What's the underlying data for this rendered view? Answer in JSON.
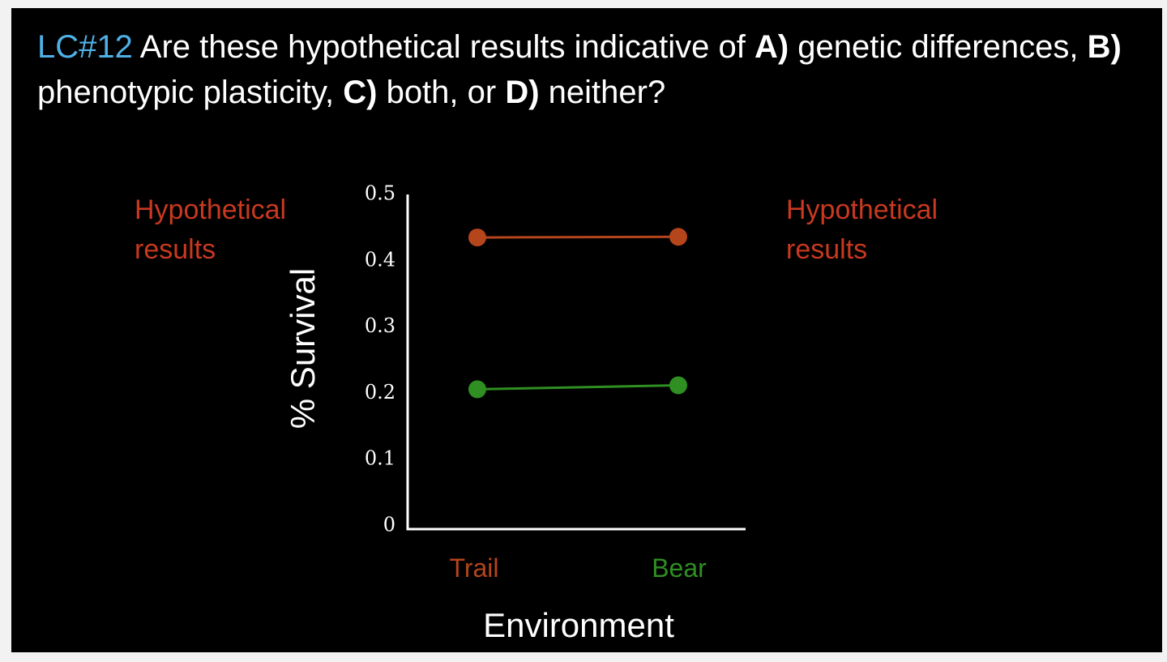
{
  "slide": {
    "question": {
      "label": "LC#12",
      "text_1": " Are these hypothetical results indicative of ",
      "opt_a": "A)",
      "text_2": " genetic differences, ",
      "opt_b": "B)",
      "text_3": " phenotypic plasticity, ",
      "opt_c": "C)",
      "text_4": " both, or ",
      "opt_d": "D)",
      "text_5": " neither?"
    },
    "note_left": {
      "line1": "Hypothetical",
      "line2": "results"
    },
    "note_right": {
      "line1": "Hypothetical",
      "line2": "results"
    }
  },
  "colors": {
    "background": "#000000",
    "text": "#ffffff",
    "label_blue": "#4fb0e6",
    "note_red": "#c8391f",
    "trail_brown": "#b5451b",
    "bear_green": "#2f8f22",
    "axis": "#ffffff"
  },
  "chart_data": {
    "type": "line",
    "title": "",
    "xlabel": "Environment",
    "ylabel": "% Survival",
    "ylim": [
      0,
      0.5
    ],
    "yticks": [
      {
        "value": 0,
        "label": "0"
      },
      {
        "value": 0.1,
        "label": "0.1"
      },
      {
        "value": 0.2,
        "label": "0.2"
      },
      {
        "value": 0.3,
        "label": "0.3"
      },
      {
        "value": 0.4,
        "label": "0.4"
      },
      {
        "value": 0.5,
        "label": "0.5"
      }
    ],
    "categories": [
      "Trail",
      "Bear"
    ],
    "category_colors": [
      "#b5451b",
      "#2f8f22"
    ],
    "grid": false,
    "series": [
      {
        "name": "Trail",
        "color": "#b5451b",
        "values": [
          0.44,
          0.441
        ]
      },
      {
        "name": "Bear",
        "color": "#2f8f22",
        "values": [
          0.211,
          0.217
        ]
      }
    ]
  }
}
